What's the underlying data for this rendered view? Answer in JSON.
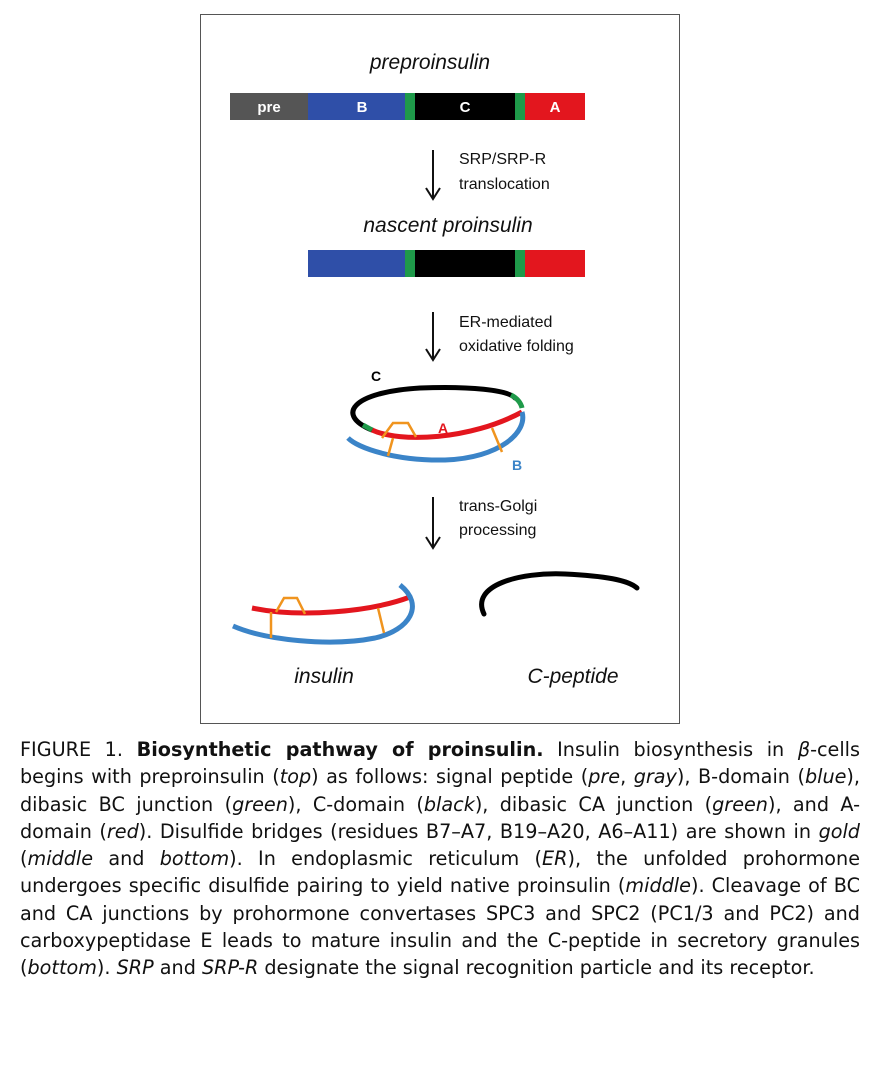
{
  "diagram": {
    "title_preproinsulin": "preproinsulin",
    "seg_pre": "pre",
    "seg_b": "B",
    "seg_c": "C",
    "seg_a": "A",
    "step1_line1": "SRP/SRP-R",
    "step1_line2": "translocation",
    "title_nascent": "nascent proinsulin",
    "step2_line1": "ER-mediated",
    "step2_line2": "oxidative folding",
    "chain_c": "C",
    "chain_a": "A",
    "chain_b": "B",
    "step3_line1": "trans-Golgi",
    "step3_line2": "processing",
    "label_insulin": "insulin",
    "label_cpeptide": "C-peptide",
    "colors": {
      "pre": "#555555",
      "b_domain": "#2f4fa8",
      "junction": "#1f9a4a",
      "c_domain": "#000000",
      "a_domain": "#e3161e",
      "b_chain_curve": "#3b84c8",
      "disulfide": "#f0941e"
    }
  },
  "caption": {
    "fig_label": "FIGURE 1.",
    "fig_title": "Biosynthetic pathway of proinsulin.",
    "t01": " Insulin biosynthesis in ",
    "beta": "β",
    "t02": "-cells begins with preproinsulin (",
    "i_top": "top",
    "t03": ") as follows: signal peptide (",
    "i_pre": "pre",
    "t04": ", ",
    "i_gray": "gray",
    "t05": "), B-domain (",
    "i_blue": "blue",
    "t06": "), dibasic BC junction (",
    "i_green1": "green",
    "t07": "), C-domain (",
    "i_black": "black",
    "t08": "), dibasic CA junction (",
    "i_green2": "green",
    "t09": "), and A-domain (",
    "i_red": "red",
    "t10": "). Disulfide bridges (residues B7–A7, B19–A20, A6–A11) are shown in ",
    "i_gold": "gold",
    "t11": " (",
    "i_middle1": "middle",
    "t12": " and ",
    "i_bottom1": "bottom",
    "t13": "). In endoplasmic reticulum (",
    "i_er": "ER",
    "t14": "), the unfolded prohormone undergoes specific disulfide pairing to yield native proinsulin (",
    "i_middle2": "middle",
    "t15": "). Cleavage of BC and CA junctions by prohormone convertases SPC3 and SPC2 (PC1/3 and PC2) and carboxypeptidase E leads to mature insulin and the C-peptide in secretory granules (",
    "i_bottom2": "bottom",
    "t16": "). ",
    "i_srp": "SRP",
    "t17": " and ",
    "i_srpr": "SRP-R",
    "t18": " designate the signal recognition particle and its receptor."
  }
}
